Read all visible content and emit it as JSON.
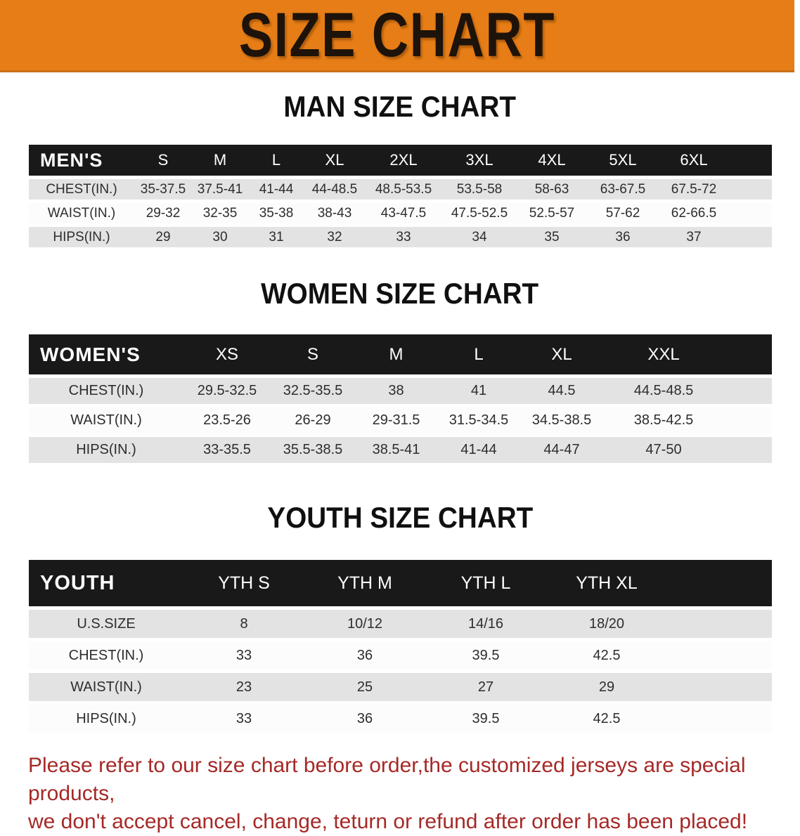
{
  "banner": {
    "title": "SIZE CHART"
  },
  "sections": [
    {
      "heading": "MAN SIZE CHART",
      "table": {
        "header_label": "MEN'S",
        "columns": [
          "S",
          "M",
          "L",
          "XL",
          "2XL",
          "3XL",
          "4XL",
          "5XL",
          "6XL"
        ],
        "rows": [
          {
            "label": "CHEST(IN.)",
            "values": [
              "35-37.5",
              "37.5-41",
              "41-44",
              "44-48.5",
              "48.5-53.5",
              "53.5-58",
              "58-63",
              "63-67.5",
              "67.5-72"
            ]
          },
          {
            "label": "WAIST(IN.)",
            "values": [
              "29-32",
              "32-35",
              "35-38",
              "38-43",
              "43-47.5",
              "47.5-52.5",
              "52.5-57",
              "57-62",
              "62-66.5"
            ]
          },
          {
            "label": "HIPS(IN.)",
            "values": [
              "29",
              "30",
              "31",
              "32",
              "33",
              "34",
              "35",
              "36",
              "37"
            ]
          }
        ]
      }
    },
    {
      "heading": "WOMEN SIZE CHART",
      "table": {
        "header_label": "WOMEN'S",
        "columns": [
          "XS",
          "S",
          "M",
          "L",
          "XL",
          "XXL"
        ],
        "rows": [
          {
            "label": "CHEST(IN.)",
            "values": [
              "29.5-32.5",
              "32.5-35.5",
              "38",
              "41",
              "44.5",
              "44.5-48.5"
            ]
          },
          {
            "label": "WAIST(IN.)",
            "values": [
              "23.5-26",
              "26-29",
              "29-31.5",
              "31.5-34.5",
              "34.5-38.5",
              "38.5-42.5"
            ]
          },
          {
            "label": "HIPS(IN.)",
            "values": [
              "33-35.5",
              "35.5-38.5",
              "38.5-41",
              "41-44",
              "44-47",
              "47-50"
            ]
          }
        ]
      }
    },
    {
      "heading": "YOUTH SIZE CHART",
      "table": {
        "header_label": "YOUTH",
        "columns": [
          "YTH S",
          "YTH M",
          "YTH L",
          "YTH XL"
        ],
        "rows": [
          {
            "label": "U.S.SIZE",
            "values": [
              "8",
              "10/12",
              "14/16",
              "18/20"
            ]
          },
          {
            "label": "CHEST(IN.)",
            "values": [
              "33",
              "36",
              "39.5",
              "42.5"
            ]
          },
          {
            "label": "WAIST(IN.)",
            "values": [
              "23",
              "25",
              "27",
              "29"
            ]
          },
          {
            "label": "HIPS(IN.)",
            "values": [
              "33",
              "36",
              "39.5",
              "42.5"
            ]
          }
        ]
      }
    }
  ],
  "footer": {
    "lines": [
      "Please refer to our size chart before order,the customized jerseys are special products,",
      "we don't accept cancel, change, teturn or refund after order has been placed!"
    ]
  },
  "colors": {
    "banner_orange": "#e67d16",
    "table_header_black": "#191919",
    "row_stripe_gray": "#e3e3e3",
    "footer_red": "#a52927"
  }
}
